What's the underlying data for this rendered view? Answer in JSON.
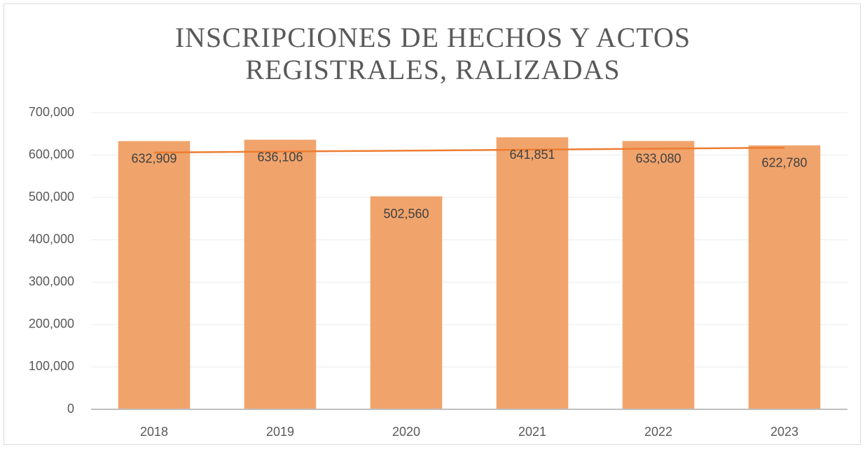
{
  "chart_data": {
    "type": "bar",
    "title": [
      "INSCRIPCIONES DE HECHOS Y ACTOS",
      "REGISTRALES, RALIZADAS"
    ],
    "categories": [
      "2018",
      "2019",
      "2020",
      "2021",
      "2022",
      "2023"
    ],
    "values": [
      632909,
      636106,
      502560,
      641851,
      633080,
      622780
    ],
    "value_labels": [
      "632,909",
      "636,106",
      "502,560",
      "641,851",
      "633,080",
      "622,780"
    ],
    "color": "#f0a46c",
    "trendline": "linear",
    "trendline_color": "#ed7d31",
    "ylim": [
      0,
      700000
    ],
    "yticks": [
      0,
      {
        "value": 100000,
        "label": "100,000"
      },
      {
        "value": 200000,
        "label": "200,000"
      },
      {
        "value": 300000,
        "label": "300,000"
      },
      {
        "value": 400000,
        "label": "400,000"
      },
      {
        "value": 500000,
        "label": "500,000"
      },
      {
        "value": 600000,
        "label": "600,000"
      },
      {
        "value": 700000,
        "label": "700,000"
      }
    ],
    "grid": true
  }
}
